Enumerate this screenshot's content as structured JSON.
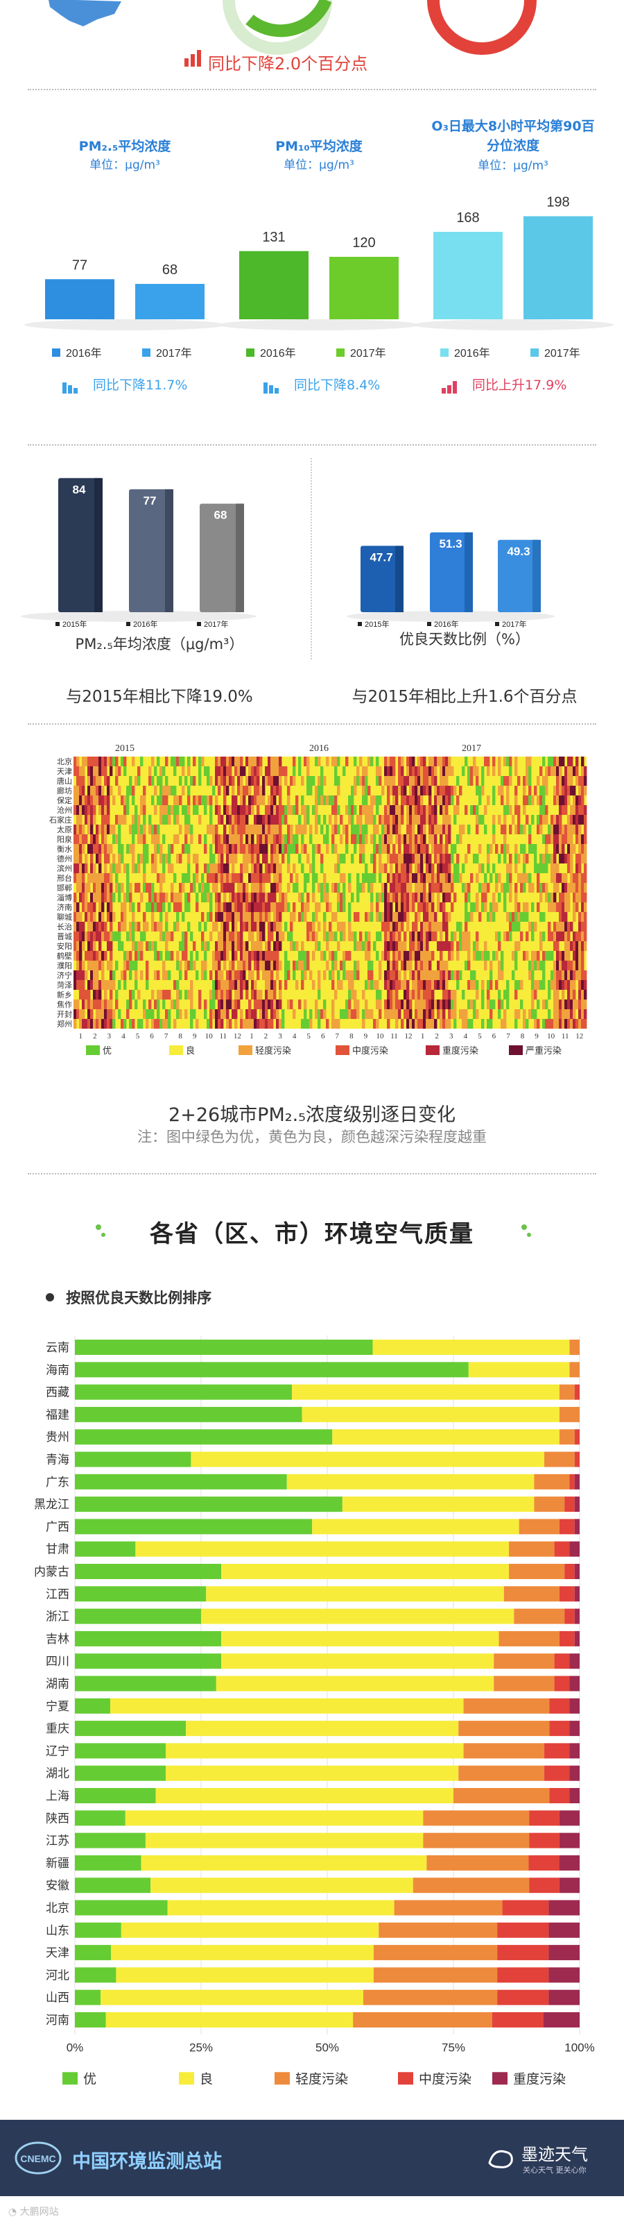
{
  "top": {
    "change_text": "同比下降2.0个百分点"
  },
  "pollutants": [
    {
      "title_html": "PM₂.₅平均浓度",
      "unit": "单位：μg/m³",
      "y2016": 77,
      "y2017": 68,
      "label2016": "2016年",
      "label2017": "2017年",
      "c2016": "#2e8fe0",
      "c2017": "#3aa2ea",
      "change": "同比下降11.7%",
      "change_color": "#3aa2ea"
    },
    {
      "title_html": "PM₁₀平均浓度",
      "unit": "单位：μg/m³",
      "y2016": 131,
      "y2017": 120,
      "label2016": "2016年",
      "label2017": "2017年",
      "c2016": "#4cb82a",
      "c2017": "#6dcc2a",
      "change": "同比下降8.4%",
      "change_color": "#3aa2ea"
    },
    {
      "title_html": "O₃日最大8小时平均第90百分位浓度",
      "unit": "单位：μg/m³",
      "y2016": 168,
      "y2017": 198,
      "label2016": "2016年",
      "label2017": "2017年",
      "c2016": "#78dff0",
      "c2017": "#5cc8e8",
      "change": "同比上升17.9%",
      "change_color": "#e04060"
    }
  ],
  "compare": {
    "pm25": {
      "values": [
        84,
        77,
        68
      ],
      "labels": [
        "2015年",
        "2016年",
        "2017年"
      ],
      "caption": "PM₂.₅年均浓度（μg/m³）",
      "note": "与2015年相比下降19.0%"
    },
    "good": {
      "values": [
        47.7,
        51.3,
        49.3
      ],
      "labels": [
        "2015年",
        "2016年",
        "2017年"
      ],
      "caption": "优良天数比例（%）",
      "note": "与2015年相比上升1.6个百分点"
    }
  },
  "heatmap": {
    "years": [
      "2015",
      "2016",
      "2017"
    ],
    "cities": [
      "北京",
      "天津",
      "唐山",
      "廊坊",
      "保定",
      "沧州",
      "石家庄",
      "太原",
      "阳泉",
      "衡水",
      "德州",
      "滨州",
      "邢台",
      "邯郸",
      "淄博",
      "济南",
      "聊城",
      "长治",
      "晋城",
      "安阳",
      "鹤壁",
      "濮阳",
      "济宁",
      "菏泽",
      "新乡",
      "焦作",
      "开封",
      "郑州"
    ],
    "months": [
      "1",
      "2",
      "3",
      "4",
      "5",
      "6",
      "7",
      "8",
      "9",
      "10",
      "11",
      "12"
    ],
    "legend": [
      "优",
      "良",
      "轻度污染",
      "中度污染",
      "重度污染",
      "严重污染"
    ],
    "title": "2+26城市PM₂.₅浓度级别逐日变化",
    "note": "注：图中绿色为优，黄色为良，颜色越深污染程度越重"
  },
  "province": {
    "section_title": "各省（区、市）环境空气质量",
    "subtitle": "按照优良天数比例排序",
    "footer_left": "中国环境监测总站",
    "footer_right": "墨迹天气",
    "footer_right_sub": "关心天气 更关心你",
    "watermark": "大鹏网站"
  },
  "chart_data": [
    {
      "type": "bar",
      "title": "PM₂.₅平均浓度",
      "categories": [
        "2016年",
        "2017年"
      ],
      "values": [
        77,
        68
      ]
    },
    {
      "type": "bar",
      "title": "PM₁₀平均浓度",
      "categories": [
        "2016年",
        "2017年"
      ],
      "values": [
        131,
        120
      ]
    },
    {
      "type": "bar",
      "title": "O₃日最大8小时平均第90百分位浓度",
      "categories": [
        "2016年",
        "2017年"
      ],
      "values": [
        168,
        198
      ]
    },
    {
      "type": "bar",
      "title": "PM₂.₅年均浓度（μg/m³）",
      "categories": [
        "2015年",
        "2016年",
        "2017年"
      ],
      "values": [
        84,
        77,
        68
      ]
    },
    {
      "type": "bar",
      "title": "优良天数比例（%）",
      "categories": [
        "2015年",
        "2016年",
        "2017年"
      ],
      "values": [
        47.7,
        51.3,
        49.3
      ]
    },
    {
      "type": "bar",
      "title": "按照优良天数比例排序",
      "orientation": "horizontal-stacked",
      "xlim": [
        0,
        100
      ],
      "xticks": [
        "0%",
        "25%",
        "50%",
        "75%",
        "100%"
      ],
      "categories": [
        "云南",
        "海南",
        "西藏",
        "福建",
        "贵州",
        "青海",
        "广东",
        "黑龙江",
        "广西",
        "甘肃",
        "内蒙古",
        "江西",
        "浙江",
        "吉林",
        "四川",
        "湖南",
        "宁夏",
        "重庆",
        "辽宁",
        "湖北",
        "上海",
        "陕西",
        "江苏",
        "新疆",
        "安徽",
        "北京",
        "山东",
        "天津",
        "河北",
        "山西",
        "河南"
      ],
      "series": [
        {
          "name": "优",
          "color": "#66cc33",
          "values": [
            59,
            78,
            43,
            45,
            51,
            23,
            42,
            53,
            47,
            12,
            29,
            26,
            25,
            29,
            29,
            28,
            7,
            22,
            18,
            18,
            16,
            10,
            14,
            13,
            15,
            18,
            9,
            7,
            8,
            5,
            6
          ]
        },
        {
          "name": "良",
          "color": "#f7ec3a",
          "values": [
            39,
            20,
            53,
            51,
            45,
            70,
            49,
            38,
            41,
            74,
            57,
            59,
            62,
            55,
            54,
            55,
            70,
            54,
            59,
            58,
            59,
            59,
            55,
            56,
            52,
            44,
            50,
            51,
            50,
            51,
            48
          ]
        },
        {
          "name": "轻度污染",
          "color": "#ee8a3c",
          "values": [
            2,
            2,
            3,
            4,
            3,
            6,
            7,
            6,
            8,
            9,
            11,
            11,
            10,
            12,
            12,
            12,
            17,
            18,
            16,
            17,
            19,
            21,
            21,
            20,
            23,
            21,
            23,
            24,
            24,
            26,
            27
          ]
        },
        {
          "name": "中度污染",
          "color": "#e2423a",
          "values": [
            0,
            0,
            1,
            0,
            1,
            1,
            1,
            2,
            3,
            3,
            2,
            3,
            2,
            3,
            3,
            3,
            4,
            4,
            5,
            5,
            4,
            6,
            6,
            6,
            6,
            9,
            10,
            10,
            10,
            10,
            10
          ]
        },
        {
          "name": "重度污染",
          "color": "#9e2a4f",
          "values": [
            0,
            0,
            0,
            0,
            0,
            0,
            1,
            1,
            1,
            2,
            1,
            1,
            1,
            1,
            2,
            2,
            2,
            2,
            2,
            2,
            2,
            4,
            4,
            4,
            4,
            6,
            6,
            6,
            6,
            6,
            7
          ]
        }
      ]
    }
  ]
}
